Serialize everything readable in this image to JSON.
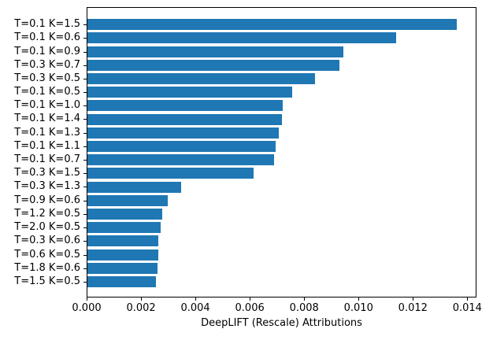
{
  "chart_data": {
    "type": "bar",
    "orientation": "horizontal",
    "title": "",
    "xlabel": "DeepLIFT (Rescale) Attributions",
    "ylabel": "",
    "categories": [
      "T=0.1 K=1.5",
      "T=0.1 K=0.6",
      "T=0.1 K=0.9",
      "T=0.3 K=0.7",
      "T=0.3 K=0.5",
      "T=0.1 K=0.5",
      "T=0.1 K=1.0",
      "T=0.1 K=1.4",
      "T=0.1 K=1.3",
      "T=0.1 K=1.1",
      "T=0.1 K=0.7",
      "T=0.3 K=1.5",
      "T=0.3 K=1.3",
      "T=0.9 K=0.6",
      "T=1.2 K=0.5",
      "T=2.0 K=0.5",
      "T=0.3 K=0.6",
      "T=0.6 K=0.5",
      "T=1.8 K=0.6",
      "T=1.5 K=0.5"
    ],
    "values": [
      0.01359,
      0.01134,
      0.00942,
      0.00926,
      0.00838,
      0.00753,
      0.00719,
      0.00716,
      0.00705,
      0.00692,
      0.00686,
      0.00611,
      0.00344,
      0.00295,
      0.00276,
      0.00269,
      0.00262,
      0.00261,
      0.00258,
      0.00252
    ],
    "xlim": [
      0,
      0.01428
    ],
    "x_tick_values": [
      0,
      0.002,
      0.004,
      0.006,
      0.008,
      0.01,
      0.012,
      0.014
    ],
    "x_tick_labels": [
      "0.000",
      "0.002",
      "0.004",
      "0.006",
      "0.008",
      "0.010",
      "0.012",
      "0.014"
    ],
    "bar_color": "#1f77b4",
    "axis_color": "#000000",
    "text_color": "#000000",
    "background_color": "#ffffff",
    "grid": false,
    "legend": null
  }
}
